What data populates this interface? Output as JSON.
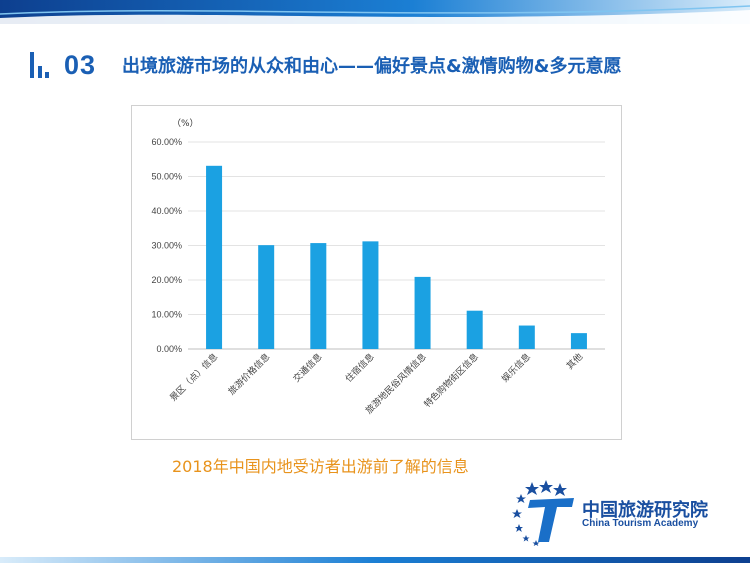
{
  "header": {
    "section_number": "03",
    "title": "出境旅游市场的从众和由心——偏好景点&激情购物&多元意愿"
  },
  "caption": "2018年中国内地受访者出游前了解的信息",
  "logo": {
    "name_cn": "中国旅游研究院",
    "name_en": "China Tourism Academy"
  },
  "colors": {
    "accent": "#1a5fb4",
    "bar": "#1ba1e2",
    "caption": "#e8931c"
  },
  "chart_data": {
    "type": "bar",
    "unit_label": "（%）",
    "categories": [
      "景区（点）信息",
      "旅游价格信息",
      "交通信息",
      "住宿信息",
      "旅游地民俗风情信息",
      "特色购物街区信息",
      "娱乐信息",
      "其他"
    ],
    "values": [
      53.1,
      30.1,
      30.7,
      31.2,
      20.9,
      11.1,
      6.8,
      4.6
    ],
    "y_ticks": [
      "0.00%",
      "10.00%",
      "20.00%",
      "30.00%",
      "40.00%",
      "50.00%",
      "60.00%"
    ],
    "ylim": [
      0,
      60
    ],
    "grid": true,
    "legend": "none"
  }
}
